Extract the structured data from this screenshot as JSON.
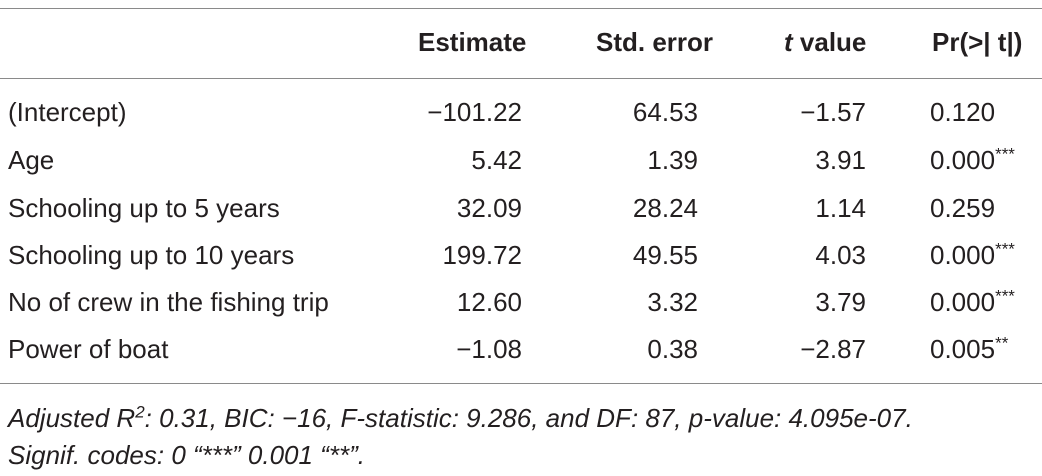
{
  "table": {
    "header": {
      "estimate": "Estimate",
      "std_error": "Std. error",
      "t_value": {
        "italic": "t",
        "text": " value"
      },
      "p": "Pr(>| t|)"
    },
    "rows": [
      {
        "label": "(Intercept)",
        "estimate": "−101.22",
        "std_error": "64.53",
        "t_value": "−1.57",
        "p": "0.120"
      },
      {
        "label": "Age",
        "estimate": "5.42",
        "std_error": "1.39",
        "t_value": "3.91",
        "p": "0.000",
        "signif": "***"
      },
      {
        "label": "Schooling up to 5 years",
        "estimate": "32.09",
        "std_error": "28.24",
        "t_value": "1.14",
        "p": "0.259"
      },
      {
        "label": "Schooling up to 10 years",
        "estimate": "199.72",
        "std_error": "49.55",
        "t_value": "4.03",
        "p": "0.000",
        "signif": "***"
      },
      {
        "label": "No of crew in the fishing trip",
        "estimate": "12.60",
        "std_error": "3.32",
        "t_value": "3.79",
        "p": "0.000",
        "signif": "***"
      },
      {
        "label": "Power of boat",
        "estimate": "−1.08",
        "std_error": "0.38",
        "t_value": "−2.87",
        "p": "0.005",
        "signif": "**"
      }
    ]
  },
  "footnote": {
    "line1": {
      "before": "Adjusted R",
      "sup": "2",
      "after": ": 0.31, BIC: −16, F-statistic: 9.286, and DF: 87, p-value: 4.095e-07."
    },
    "line2": "Signif. codes: 0 “***” 0.001 “**”."
  }
}
